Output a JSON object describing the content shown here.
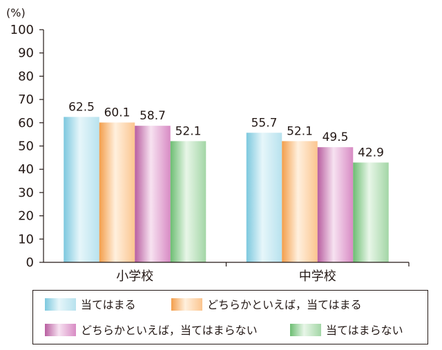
{
  "chart_data": {
    "type": "bar",
    "unit_label": "(%)",
    "ylim": [
      0,
      100
    ],
    "yticks": [
      0,
      10,
      20,
      30,
      40,
      50,
      60,
      70,
      80,
      90,
      100
    ],
    "categories": [
      "小学校",
      "中学校"
    ],
    "series": [
      {
        "name": "当てはまる",
        "values": [
          62.5,
          55.7
        ]
      },
      {
        "name": "どちらかといえば，当てはまる",
        "values": [
          60.1,
          52.1
        ]
      },
      {
        "name": "どちらかといえば，当てはまらない",
        "values": [
          58.7,
          49.5
        ]
      },
      {
        "name": "当てはまらない",
        "values": [
          52.1,
          42.9
        ]
      }
    ],
    "series_colors": [
      [
        "#b8e2ee",
        "#e6f6fa",
        "#7cc8de"
      ],
      [
        "#fbc58f",
        "#fff0de",
        "#f39e4b"
      ],
      [
        "#d88bc4",
        "#f7e2f1",
        "#b85ea0"
      ],
      [
        "#a3d6a6",
        "#e8f6e8",
        "#6cbd72"
      ]
    ],
    "legend": {
      "placement": "bottom",
      "columns": 2
    },
    "grid": false
  }
}
